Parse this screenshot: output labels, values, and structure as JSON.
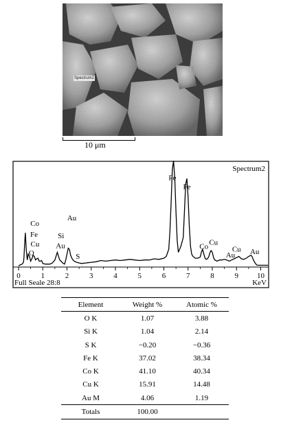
{
  "micrograph": {
    "spectrum_label": "Spectrum2",
    "scale_text": "10 μm"
  },
  "chart_data": {
    "type": "line",
    "title": "Spectrum2",
    "xlabel": "KeV",
    "footer": "Full Seale 28:8",
    "xlim": [
      0,
      10.3
    ],
    "xticks": [
      0,
      1,
      2,
      3,
      4,
      5,
      6,
      7,
      8,
      9,
      10
    ],
    "series": [
      {
        "x": [
          0,
          0.08,
          0.15,
          0.2,
          0.22,
          0.25,
          0.28,
          0.32,
          0.36,
          0.4,
          0.45,
          0.5,
          0.55,
          0.6,
          0.65,
          0.7,
          0.75,
          0.8,
          0.85,
          0.9,
          0.95,
          1.0,
          1.1,
          1.2,
          1.3,
          1.4,
          1.5,
          1.6,
          1.7,
          1.75,
          1.8,
          1.85,
          1.9,
          1.95,
          2.0,
          2.05,
          2.1,
          2.15,
          2.2,
          2.25,
          2.3,
          2.4,
          2.5,
          2.6,
          2.8,
          3.0,
          3.2,
          3.4,
          3.6,
          3.8,
          4.0,
          4.2,
          4.4,
          4.6,
          4.8,
          5.0,
          5.2,
          5.4,
          5.6,
          5.8,
          6.0,
          6.1,
          6.2,
          6.25,
          6.3,
          6.35,
          6.4,
          6.45,
          6.5,
          6.55,
          6.6,
          6.65,
          6.7,
          6.8,
          6.85,
          6.9,
          6.95,
          7.0,
          7.05,
          7.1,
          7.15,
          7.2,
          7.3,
          7.4,
          7.5,
          7.55,
          7.6,
          7.65,
          7.7,
          7.75,
          7.8,
          7.85,
          7.9,
          7.95,
          8.0,
          8.05,
          8.1,
          8.15,
          8.2,
          8.3,
          8.4,
          8.5,
          8.6,
          8.7,
          8.8,
          8.9,
          9.0,
          9.1,
          9.2,
          9.3,
          9.4,
          9.5,
          9.6,
          9.65,
          9.7,
          9.75,
          9.8,
          9.85,
          9.9,
          10.0,
          10.3
        ],
        "y": [
          2,
          4,
          5,
          8,
          15,
          38,
          58,
          28,
          12,
          22,
          18,
          10,
          14,
          20,
          18,
          12,
          14,
          15,
          10,
          10,
          11,
          6,
          5,
          5,
          5,
          7,
          12,
          25,
          12,
          10,
          8,
          6,
          5,
          12,
          22,
          32,
          30,
          20,
          15,
          12,
          10,
          8,
          7,
          6,
          7,
          8,
          9,
          11,
          10,
          11,
          12,
          11,
          12,
          13,
          12,
          11,
          12,
          12,
          14,
          13,
          15,
          18,
          30,
          60,
          110,
          165,
          180,
          150,
          95,
          45,
          25,
          30,
          35,
          50,
          95,
          140,
          150,
          120,
          70,
          35,
          22,
          18,
          15,
          15,
          17,
          25,
          30,
          22,
          15,
          13,
          14,
          17,
          24,
          28,
          25,
          16,
          12,
          11,
          10,
          12,
          12,
          13,
          12,
          10,
          12,
          14,
          16,
          18,
          14,
          13,
          15,
          18,
          20,
          17,
          12,
          8,
          5,
          3,
          3,
          3,
          3
        ]
      }
    ],
    "annotations": [
      {
        "label": "Co",
        "x": 0.67,
        "y": 70
      },
      {
        "label": "Fe",
        "x": 0.64,
        "y": 51
      },
      {
        "label": "Cu",
        "x": 0.68,
        "y": 35
      },
      {
        "label": "O",
        "x": 0.53,
        "y": 20
      },
      {
        "label": "Au",
        "x": 2.2,
        "y": 79
      },
      {
        "label": "Si",
        "x": 1.75,
        "y": 49
      },
      {
        "label": "Au",
        "x": 1.73,
        "y": 32
      },
      {
        "label": "S",
        "x": 2.45,
        "y": 14
      },
      {
        "label": "Fe",
        "x": 6.35,
        "y": 147
      },
      {
        "label": "Fe",
        "x": 6.95,
        "y": 132
      },
      {
        "label": "Co",
        "x": 7.65,
        "y": 31
      },
      {
        "label": "Cu",
        "x": 8.05,
        "y": 38
      },
      {
        "label": "Au",
        "x": 8.75,
        "y": 16
      },
      {
        "label": "Cu",
        "x": 9.0,
        "y": 26
      },
      {
        "label": "Au",
        "x": 9.75,
        "y": 22
      }
    ]
  },
  "table": {
    "headers": [
      "Element",
      "Weight %",
      "Atomic %"
    ],
    "rows": [
      [
        "O K",
        "1.07",
        "3.88"
      ],
      [
        "Si K",
        "1.04",
        "2.14"
      ],
      [
        "S K",
        "−0.20",
        "−0.36"
      ],
      [
        "Fe K",
        "37.02",
        "38.34"
      ],
      [
        "Co K",
        "41.10",
        "40.34"
      ],
      [
        "Cu K",
        "15.91",
        "14.48"
      ],
      [
        "Au M",
        "4.06",
        "1.19"
      ]
    ],
    "totals": [
      "Totals",
      "100.00",
      ""
    ]
  }
}
